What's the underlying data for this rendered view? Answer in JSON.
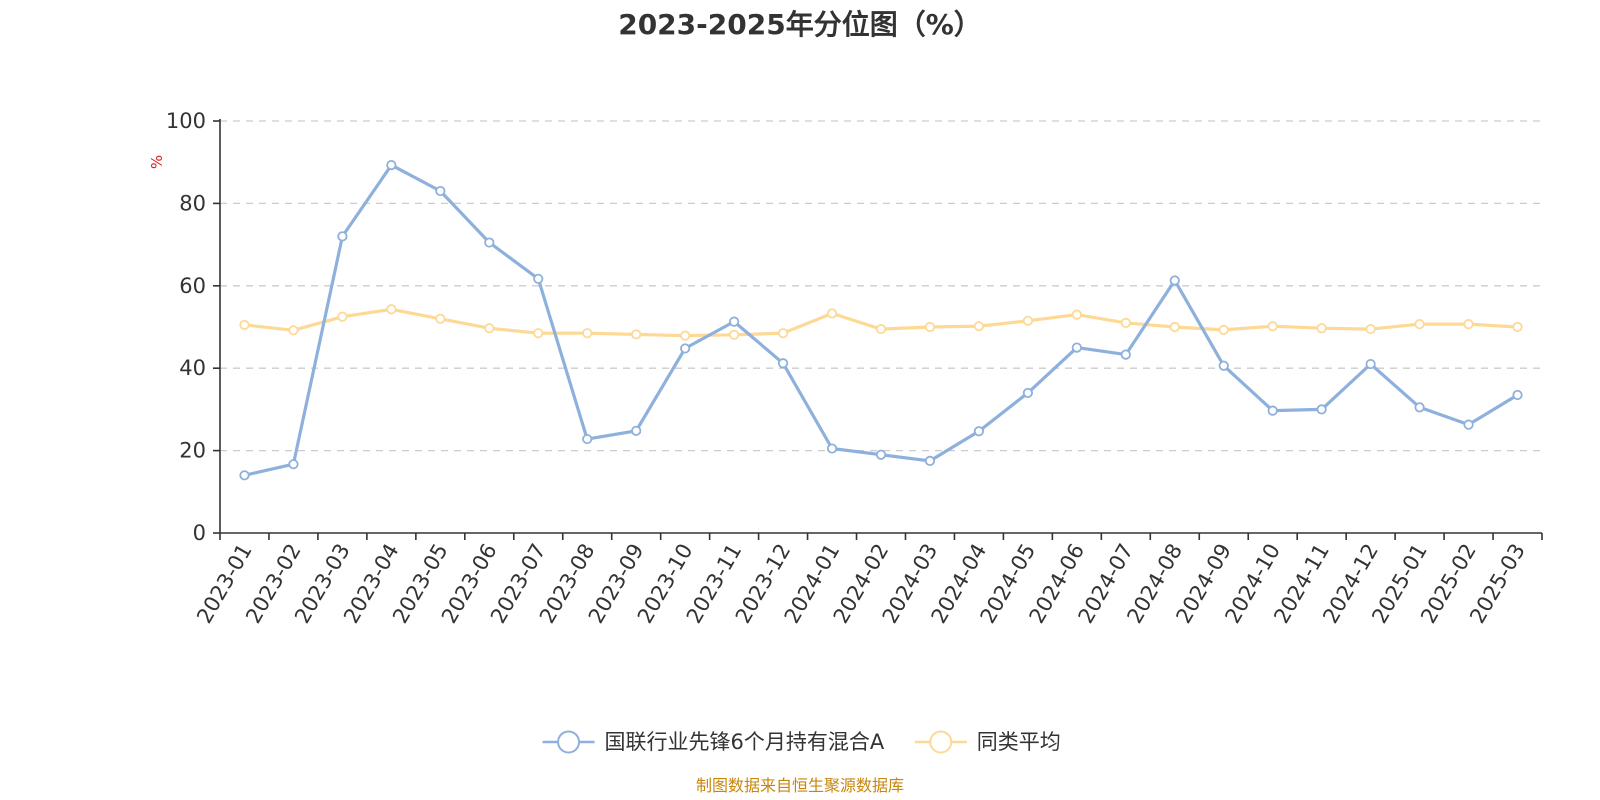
{
  "chart_data": {
    "type": "line",
    "title": "2023-2025年分位图（%）",
    "ylabel": "%",
    "xlabel": "",
    "ylim": [
      0,
      100
    ],
    "yticks": [
      0,
      20,
      40,
      60,
      80,
      100
    ],
    "grid": true,
    "legend_position": "bottom",
    "categories": [
      "2023-01",
      "2023-02",
      "2023-03",
      "2023-04",
      "2023-05",
      "2023-06",
      "2023-07",
      "2023-08",
      "2023-09",
      "2023-10",
      "2023-11",
      "2023-12",
      "2024-01",
      "2024-02",
      "2024-03",
      "2024-04",
      "2024-05",
      "2024-06",
      "2024-07",
      "2024-08",
      "2024-09",
      "2024-10",
      "2024-11",
      "2024-12",
      "2025-01",
      "2025-02",
      "2025-03"
    ],
    "series": [
      {
        "name": "国联行业先锋6个月持有混合A",
        "color": "#8eb0dc",
        "values": [
          14,
          16.7,
          72,
          89.3,
          83,
          70.5,
          61.7,
          22.8,
          24.8,
          44.8,
          51.3,
          41.2,
          20.5,
          19,
          17.5,
          24.7,
          34,
          45,
          43.3,
          61.3,
          40.6,
          29.7,
          30,
          41,
          30.5,
          26.3,
          33.5
        ]
      },
      {
        "name": "同类平均",
        "color": "#fdd995",
        "values": [
          50.5,
          49.2,
          52.5,
          54.3,
          52,
          49.7,
          48.5,
          48.5,
          48.2,
          47.9,
          48.1,
          48.5,
          53.3,
          49.5,
          50,
          50.2,
          51.5,
          53,
          51,
          50,
          49.3,
          50.2,
          49.7,
          49.5,
          50.7,
          50.7,
          50
        ]
      }
    ]
  },
  "source_note": "制图数据来自恒生聚源数据库"
}
